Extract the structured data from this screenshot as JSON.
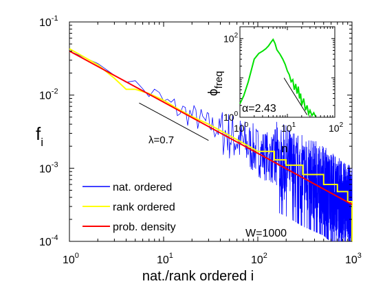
{
  "chart_data": [
    {
      "type": "line",
      "xlabel": "nat./rank ordered i",
      "ylabel_main": "f",
      "ylabel_sub": "i",
      "xscale": "log",
      "yscale": "log",
      "xlim": [
        1,
        1000
      ],
      "ylim": [
        0.0001,
        0.1
      ],
      "grid": false,
      "x_ticks": [
        {
          "value": 1,
          "base": "10",
          "exp": "0"
        },
        {
          "value": 10,
          "base": "10",
          "exp": "1"
        },
        {
          "value": 100,
          "base": "10",
          "exp": "2"
        },
        {
          "value": 1000,
          "base": "10",
          "exp": "3"
        }
      ],
      "y_ticks": [
        {
          "value": 0.0001,
          "base": "10",
          "exp": "-4"
        },
        {
          "value": 0.001,
          "base": "10",
          "exp": "-3"
        },
        {
          "value": 0.01,
          "base": "10",
          "exp": "-2"
        },
        {
          "value": 0.1,
          "base": "10",
          "exp": "-1"
        }
      ],
      "legend_position": "bottom-left",
      "series": [
        {
          "name": "nat. ordered",
          "color": "#0000ff",
          "style": "noisy-natural-order",
          "x": [
            1,
            2,
            3,
            5,
            7,
            10,
            15,
            20,
            30,
            50,
            70,
            100,
            150,
            200,
            300,
            500,
            700,
            1000
          ],
          "y": [
            0.042,
            0.026,
            0.019,
            0.013,
            0.011,
            0.008,
            0.0062,
            0.0052,
            0.004,
            0.0028,
            0.0022,
            0.0017,
            0.0013,
            0.0011,
            0.0008,
            0.0006,
            0.0004,
            0.0003
          ]
        },
        {
          "name": "rank ordered",
          "color": "#ffff00",
          "style": "stepped",
          "x": [
            1,
            2,
            3,
            4,
            5,
            7,
            10,
            15,
            20,
            30,
            50,
            70,
            100,
            150,
            200,
            300,
            500,
            700,
            900,
            1000
          ],
          "y": [
            0.043,
            0.026,
            0.017,
            0.012,
            0.012,
            0.0105,
            0.0085,
            0.0062,
            0.0051,
            0.004,
            0.0028,
            0.0022,
            0.0017,
            0.0013,
            0.0011,
            0.00082,
            0.0006,
            0.00048,
            0.00035,
            0.0001
          ]
        },
        {
          "name": "prob. density",
          "color": "#ff0000",
          "style": "line",
          "x": [
            1,
            1000
          ],
          "y": [
            0.04,
            0.00032
          ]
        }
      ],
      "annotations": [
        {
          "text": "λ=0.7",
          "kind": "slope-line",
          "x": [
            5.5,
            30
          ],
          "y": [
            0.0078,
            0.0024
          ]
        },
        {
          "text": "W=1000"
        }
      ]
    },
    {
      "type": "line",
      "inset": true,
      "xlabel": "n",
      "ylabel_main": "ϕ",
      "ylabel_sub": "freq",
      "xscale": "log",
      "yscale": "log",
      "xlim": [
        1,
        100
      ],
      "ylim": [
        1,
        200
      ],
      "x_ticks": [
        {
          "value": 1,
          "base": "10",
          "exp": "0"
        },
        {
          "value": 10,
          "base": "10",
          "exp": "1"
        },
        {
          "value": 100,
          "base": "10",
          "exp": "2"
        }
      ],
      "y_ticks": [
        {
          "value": 1,
          "base": "10",
          "exp": "0"
        },
        {
          "value": 100,
          "base": "10",
          "exp": "2"
        }
      ],
      "series": [
        {
          "color": "#00e000",
          "x": [
            1,
            1.2,
            1.5,
            2,
            2.5,
            3,
            3.5,
            4,
            4.5,
            5,
            5.5,
            6,
            7,
            8,
            9,
            10,
            11,
            12,
            13,
            14,
            15,
            16,
            17,
            18,
            19,
            20,
            22,
            24,
            26,
            28,
            30,
            33,
            36,
            40
          ],
          "y": [
            2.2,
            3.5,
            8,
            30,
            42,
            48,
            55,
            65,
            80,
            95,
            75,
            52,
            40,
            30,
            22,
            15,
            12,
            8,
            9,
            5,
            7,
            4,
            6,
            3,
            4,
            2,
            3,
            1.5,
            2,
            1.2,
            1.5,
            1.1,
            1.3,
            1
          ]
        }
      ],
      "annotations": [
        {
          "text": "α=2.43",
          "kind": "slope-line",
          "x": [
            8.5,
            26
          ],
          "y": [
            10,
            1.15
          ]
        }
      ]
    }
  ],
  "legend_colors": {
    "nat": "#0000ff",
    "rank": "#ffff00",
    "prob": "#ff0000"
  }
}
